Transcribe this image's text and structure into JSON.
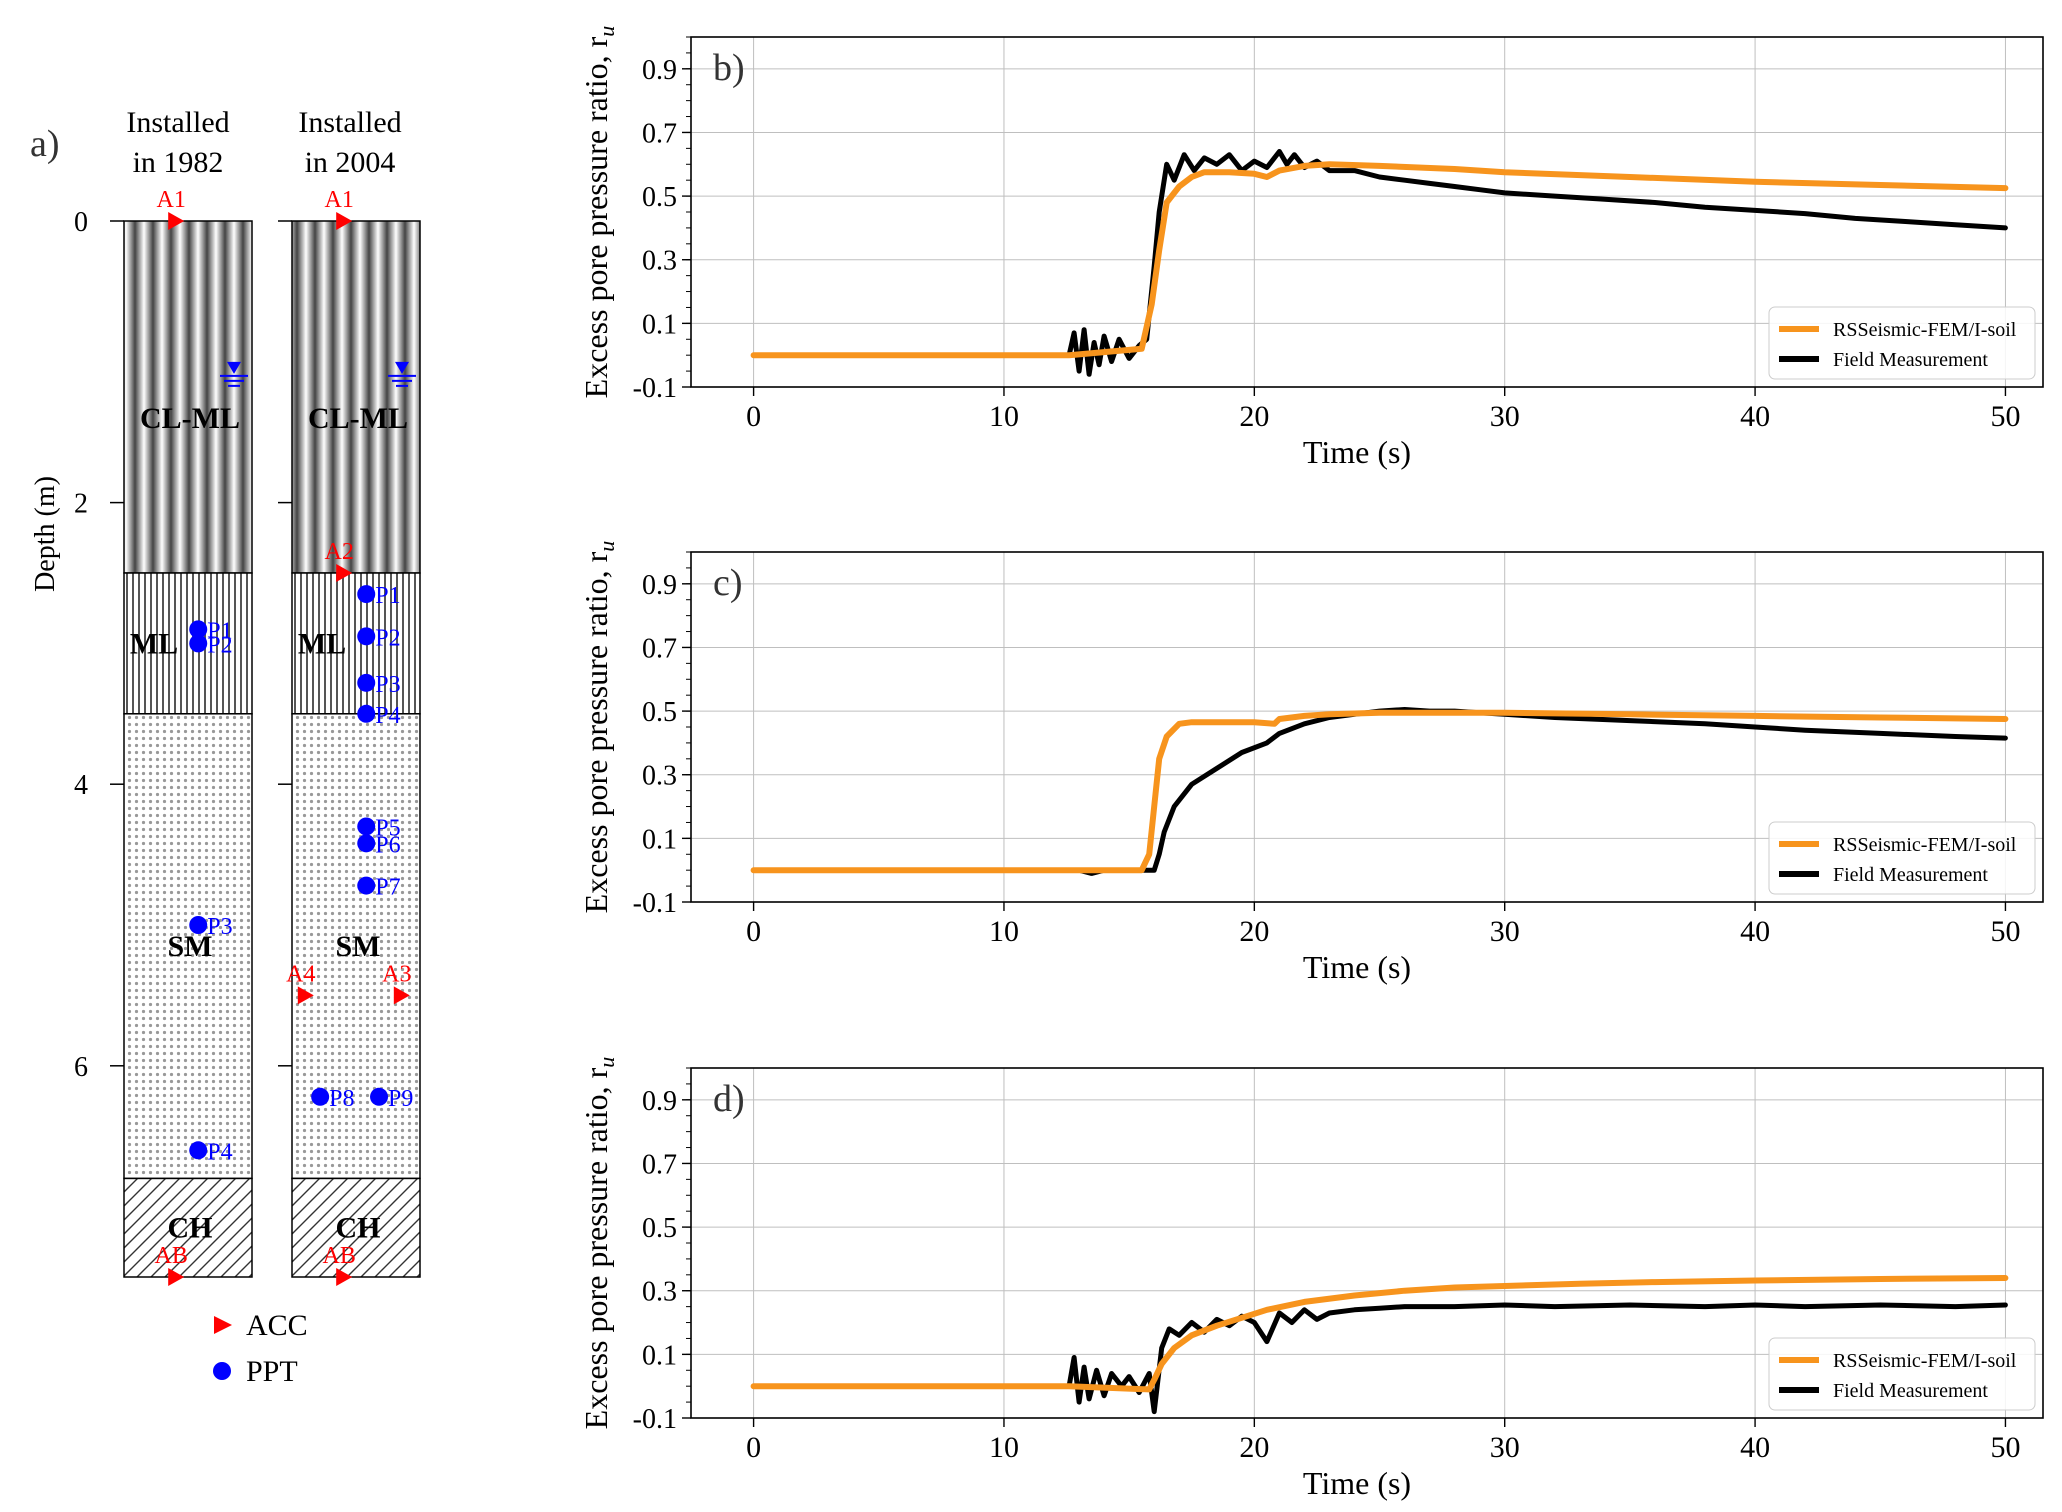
{
  "colors": {
    "model": "#F7941D",
    "field": "#000000",
    "acc": "#FF0000",
    "ppt": "#0000FF",
    "grid": "#BFBFBF"
  },
  "profile": {
    "panel_label": "a)",
    "ylabel": "Depth (m)",
    "yticks": [
      0,
      2,
      4,
      6
    ],
    "depth_range": [
      0,
      7.5
    ],
    "columns": [
      {
        "title": [
          "Installed",
          "in 1982"
        ],
        "water_table_depth": 1.1,
        "layers": [
          {
            "name": "CL-ML",
            "top": 0,
            "bottom": 2.5,
            "pattern": "stripes-wide"
          },
          {
            "name": "ML",
            "top": 2.5,
            "bottom": 3.5,
            "pattern": "stripes-fine"
          },
          {
            "name": "SM",
            "top": 3.5,
            "bottom": 6.8,
            "pattern": "dots"
          },
          {
            "name": "CH",
            "top": 6.8,
            "bottom": 7.5,
            "pattern": "hatch"
          }
        ],
        "sensors": [
          {
            "type": "ACC",
            "label": "A1",
            "depth": 0.0,
            "pos": 0.4,
            "label_side": "top"
          },
          {
            "type": "PPT",
            "label": "P1",
            "depth": 2.9,
            "pos": 0.58
          },
          {
            "type": "PPT",
            "label": "P2",
            "depth": 3.0,
            "pos": 0.58
          },
          {
            "type": "PPT",
            "label": "P3",
            "depth": 5.0,
            "pos": 0.58
          },
          {
            "type": "PPT",
            "label": "P4",
            "depth": 6.6,
            "pos": 0.58
          },
          {
            "type": "ACC",
            "label": "AB",
            "depth": 7.5,
            "pos": 0.4,
            "label_side": "top"
          }
        ]
      },
      {
        "title": [
          "Installed",
          "in 2004"
        ],
        "water_table_depth": 1.1,
        "layers": [
          {
            "name": "CL-ML",
            "top": 0,
            "bottom": 2.5,
            "pattern": "stripes-wide"
          },
          {
            "name": "ML",
            "top": 2.5,
            "bottom": 3.5,
            "pattern": "stripes-fine"
          },
          {
            "name": "SM",
            "top": 3.5,
            "bottom": 6.8,
            "pattern": "dots"
          },
          {
            "name": "CH",
            "top": 6.8,
            "bottom": 7.5,
            "pattern": "hatch"
          }
        ],
        "sensors": [
          {
            "type": "ACC",
            "label": "A1",
            "depth": 0.0,
            "pos": 0.4,
            "label_side": "top"
          },
          {
            "type": "ACC",
            "label": "A2",
            "depth": 2.5,
            "pos": 0.4,
            "label_side": "top"
          },
          {
            "type": "PPT",
            "label": "P1",
            "depth": 2.65,
            "pos": 0.58
          },
          {
            "type": "PPT",
            "label": "P2",
            "depth": 2.95,
            "pos": 0.58
          },
          {
            "type": "PPT",
            "label": "P3",
            "depth": 3.28,
            "pos": 0.58
          },
          {
            "type": "PPT",
            "label": "P4",
            "depth": 3.5,
            "pos": 0.58
          },
          {
            "type": "PPT",
            "label": "P5",
            "depth": 4.3,
            "pos": 0.58
          },
          {
            "type": "PPT",
            "label": "P6",
            "depth": 4.42,
            "pos": 0.58
          },
          {
            "type": "PPT",
            "label": "P7",
            "depth": 4.72,
            "pos": 0.58
          },
          {
            "type": "ACC",
            "label": "A4",
            "depth": 5.5,
            "pos": 0.1,
            "label_side": "top"
          },
          {
            "type": "ACC",
            "label": "A3",
            "depth": 5.5,
            "pos": 0.85,
            "label_side": "top"
          },
          {
            "type": "PPT",
            "label": "P8",
            "depth": 6.22,
            "pos": 0.22
          },
          {
            "type": "PPT",
            "label": "P9",
            "depth": 6.22,
            "pos": 0.68
          },
          {
            "type": "ACC",
            "label": "AB",
            "depth": 7.5,
            "pos": 0.4,
            "label_side": "top"
          }
        ]
      }
    ],
    "legend": [
      {
        "type": "ACC",
        "label": "ACC"
      },
      {
        "type": "PPT",
        "label": "PPT"
      }
    ]
  },
  "chart_data": [
    {
      "type": "line",
      "panel_label": "b)",
      "xlabel": "Time (s)",
      "ylabel": "Excess pore pressure ratio, r",
      "ylabel_sub": "u",
      "xlim": [
        -2.5,
        51.5
      ],
      "ylim": [
        -0.1,
        1.0
      ],
      "xticks": [
        0,
        10,
        20,
        30,
        40,
        50
      ],
      "yticks": [
        -0.1,
        0.1,
        0.3,
        0.5,
        0.7,
        0.9
      ],
      "grid": true,
      "legend_position": "lower-right",
      "series": [
        {
          "name": "RSSeismic-FEM/I-soil",
          "color": "#F7941D",
          "x": [
            0,
            12.6,
            15.5,
            15.9,
            16.2,
            16.5,
            17.0,
            17.5,
            18.0,
            19.0,
            20.0,
            20.5,
            21.0,
            22.0,
            23.0,
            25.0,
            28.0,
            30.0,
            35.0,
            40.0,
            45.0,
            50.0
          ],
          "y": [
            0.0,
            0.0,
            0.02,
            0.16,
            0.33,
            0.48,
            0.53,
            0.56,
            0.575,
            0.575,
            0.57,
            0.56,
            0.58,
            0.595,
            0.6,
            0.595,
            0.585,
            0.575,
            0.56,
            0.545,
            0.535,
            0.525
          ]
        },
        {
          "name": "Field Measurement",
          "color": "#000000",
          "x": [
            0,
            12.6,
            12.8,
            13.0,
            13.2,
            13.4,
            13.6,
            13.8,
            14.0,
            14.3,
            14.6,
            15.0,
            15.4,
            15.7,
            16.0,
            16.2,
            16.5,
            16.8,
            17.2,
            17.6,
            18.0,
            18.5,
            19.0,
            19.5,
            20.0,
            20.5,
            21.0,
            21.3,
            21.6,
            22.0,
            22.5,
            23.0,
            24.0,
            25.0,
            26.0,
            27.0,
            28.0,
            29.0,
            30.0,
            32.0,
            34.0,
            36.0,
            38.0,
            40.0,
            42.0,
            44.0,
            46.0,
            48.0,
            50.0
          ],
          "y": [
            0.0,
            0.0,
            0.07,
            -0.05,
            0.08,
            -0.06,
            0.04,
            -0.03,
            0.06,
            -0.02,
            0.05,
            -0.01,
            0.03,
            0.05,
            0.28,
            0.45,
            0.6,
            0.55,
            0.63,
            0.58,
            0.62,
            0.6,
            0.63,
            0.58,
            0.61,
            0.59,
            0.64,
            0.6,
            0.63,
            0.59,
            0.61,
            0.58,
            0.58,
            0.56,
            0.55,
            0.54,
            0.53,
            0.52,
            0.51,
            0.5,
            0.49,
            0.48,
            0.465,
            0.455,
            0.445,
            0.43,
            0.42,
            0.41,
            0.4
          ]
        }
      ]
    },
    {
      "type": "line",
      "panel_label": "c)",
      "xlabel": "Time (s)",
      "ylabel": "Excess pore pressure ratio, r",
      "ylabel_sub": "u",
      "xlim": [
        -2.5,
        51.5
      ],
      "ylim": [
        -0.1,
        1.0
      ],
      "xticks": [
        0,
        10,
        20,
        30,
        40,
        50
      ],
      "yticks": [
        -0.1,
        0.1,
        0.3,
        0.5,
        0.7,
        0.9
      ],
      "grid": true,
      "legend_position": "lower-right",
      "series": [
        {
          "name": "RSSeismic-FEM/I-soil",
          "color": "#F7941D",
          "x": [
            0,
            15.5,
            15.8,
            16.0,
            16.2,
            16.5,
            17.0,
            17.5,
            18.0,
            19.0,
            20.0,
            20.8,
            21.0,
            22.0,
            23.0,
            25.0,
            28.0,
            30.0,
            35.0,
            40.0,
            45.0,
            50.0
          ],
          "y": [
            0.0,
            0.0,
            0.05,
            0.2,
            0.35,
            0.42,
            0.46,
            0.465,
            0.465,
            0.465,
            0.465,
            0.46,
            0.475,
            0.485,
            0.49,
            0.495,
            0.495,
            0.495,
            0.49,
            0.485,
            0.48,
            0.475
          ]
        },
        {
          "name": "Field Measurement",
          "color": "#000000",
          "x": [
            0,
            13.0,
            13.5,
            14.0,
            15.0,
            16.0,
            16.2,
            16.4,
            16.8,
            17.5,
            18.5,
            19.5,
            20.5,
            21.0,
            22.0,
            23.0,
            24.0,
            25.0,
            26.0,
            27.0,
            28.0,
            29.0,
            30.0,
            32.0,
            35.0,
            38.0,
            40.0,
            42.0,
            45.0,
            48.0,
            50.0
          ],
          "y": [
            0.0,
            0.0,
            -0.01,
            0.0,
            0.0,
            0.0,
            0.05,
            0.12,
            0.2,
            0.27,
            0.32,
            0.37,
            0.4,
            0.43,
            0.46,
            0.48,
            0.49,
            0.5,
            0.505,
            0.5,
            0.5,
            0.495,
            0.49,
            0.48,
            0.47,
            0.46,
            0.45,
            0.44,
            0.43,
            0.42,
            0.415
          ]
        }
      ]
    },
    {
      "type": "line",
      "panel_label": "d)",
      "xlabel": "Time (s)",
      "ylabel": "Excess pore pressure ratio, r",
      "ylabel_sub": "u",
      "xlim": [
        -2.5,
        51.5
      ],
      "ylim": [
        -0.1,
        1.0
      ],
      "xticks": [
        0,
        10,
        20,
        30,
        40,
        50
      ],
      "yticks": [
        -0.1,
        0.1,
        0.3,
        0.5,
        0.7,
        0.9
      ],
      "grid": true,
      "legend_position": "lower-right",
      "series": [
        {
          "name": "RSSeismic-FEM/I-soil",
          "color": "#F7941D",
          "x": [
            0,
            12.6,
            15.8,
            16.0,
            16.3,
            16.8,
            17.5,
            18.5,
            19.5,
            20.5,
            22.0,
            24.0,
            26.0,
            28.0,
            30.0,
            33.0,
            36.0,
            40.0,
            45.0,
            50.0
          ],
          "y": [
            0.0,
            0.0,
            -0.01,
            0.02,
            0.07,
            0.12,
            0.16,
            0.19,
            0.215,
            0.24,
            0.265,
            0.285,
            0.3,
            0.31,
            0.315,
            0.322,
            0.327,
            0.332,
            0.337,
            0.34
          ]
        },
        {
          "name": "Field Measurement",
          "color": "#000000",
          "x": [
            0,
            12.6,
            12.8,
            13.0,
            13.2,
            13.4,
            13.7,
            14.0,
            14.3,
            14.7,
            15.0,
            15.4,
            15.8,
            16.0,
            16.3,
            16.6,
            17.0,
            17.5,
            18.0,
            18.5,
            19.0,
            19.5,
            20.0,
            20.5,
            21.0,
            21.5,
            22.0,
            22.5,
            23.0,
            24.0,
            25.0,
            26.0,
            28.0,
            30.0,
            32.0,
            35.0,
            38.0,
            40.0,
            42.0,
            45.0,
            48.0,
            50.0
          ],
          "y": [
            0.0,
            0.0,
            0.09,
            -0.05,
            0.06,
            -0.04,
            0.05,
            -0.03,
            0.04,
            0.0,
            0.03,
            -0.02,
            0.04,
            -0.08,
            0.12,
            0.18,
            0.16,
            0.2,
            0.17,
            0.21,
            0.19,
            0.22,
            0.2,
            0.14,
            0.23,
            0.2,
            0.24,
            0.21,
            0.23,
            0.24,
            0.245,
            0.25,
            0.25,
            0.255,
            0.25,
            0.255,
            0.25,
            0.255,
            0.25,
            0.255,
            0.25,
            0.255
          ]
        }
      ]
    }
  ]
}
